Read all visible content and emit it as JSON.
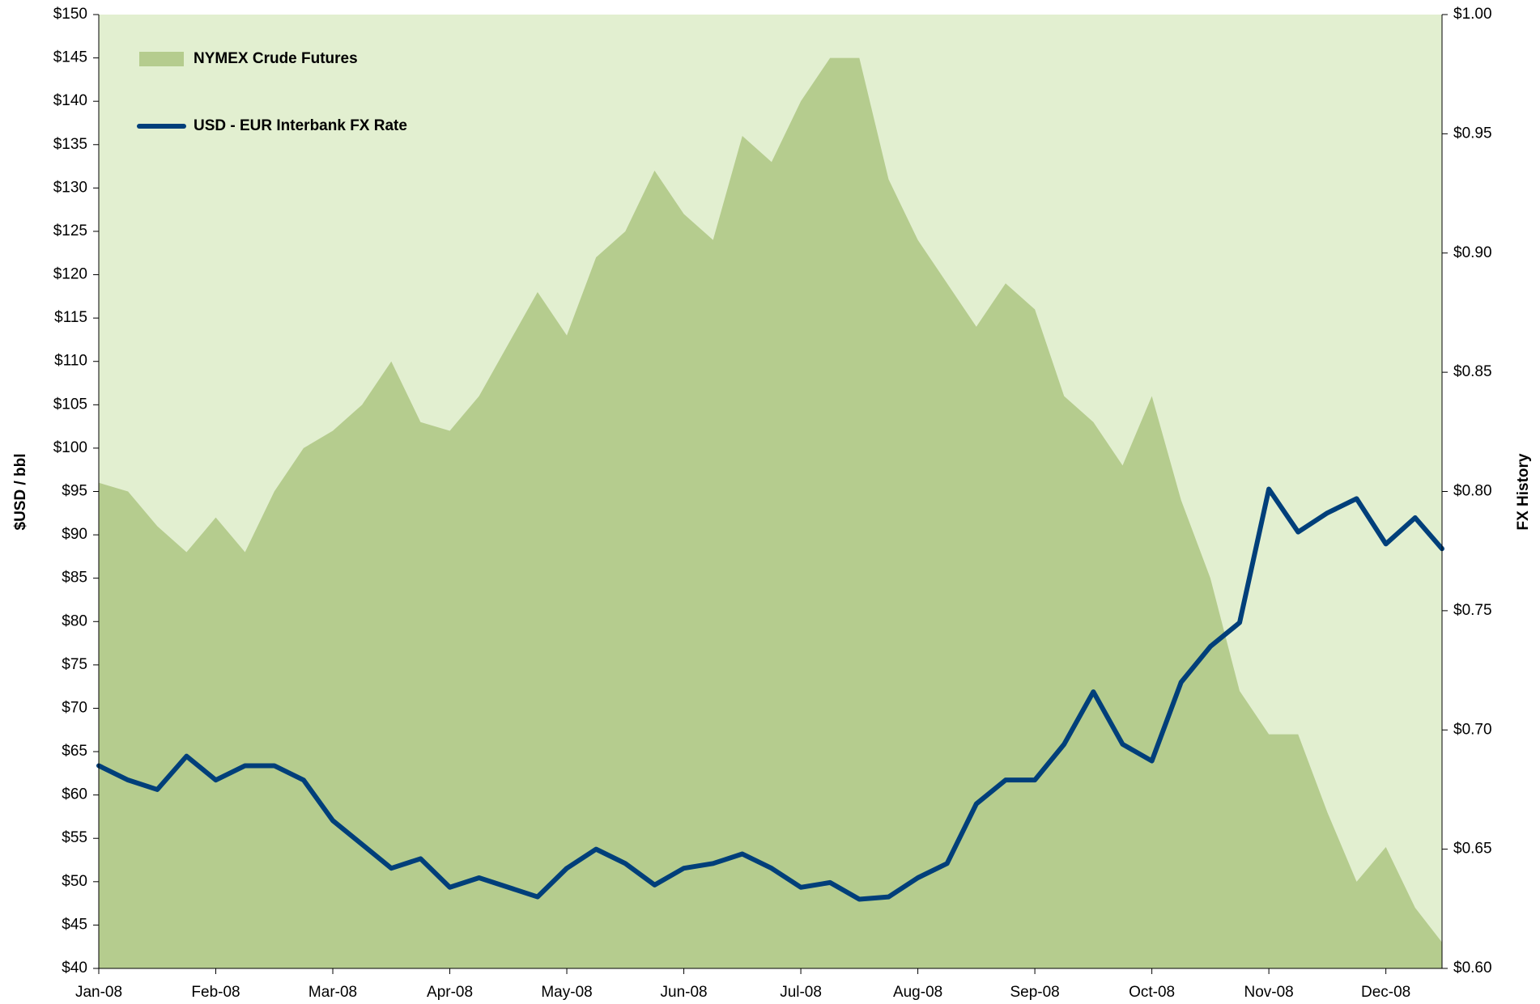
{
  "chart_data": {
    "type": "area-line",
    "y_label": "$USD / bbl",
    "y2_label": "FX History",
    "legend": "upper left",
    "plot_background": "#e2efd0",
    "x": [
      0,
      0.25,
      0.5,
      0.75,
      1,
      1.25,
      1.5,
      1.75,
      2,
      2.25,
      2.5,
      2.75,
      3,
      3.25,
      3.5,
      3.75,
      4,
      4.25,
      4.5,
      4.75,
      5,
      5.25,
      5.5,
      5.75,
      6,
      6.25,
      6.5,
      6.75,
      7,
      7.25,
      7.5,
      7.75,
      8,
      8.25,
      8.5,
      8.75,
      9,
      9.25,
      9.5,
      9.75,
      10,
      10.25,
      10.5,
      10.75,
      11,
      11.25,
      11.48
    ],
    "xlim": [
      0,
      11.48
    ],
    "xticks": [
      {
        "value": 0,
        "label": "Jan-08"
      },
      {
        "value": 1,
        "label": "Feb-08"
      },
      {
        "value": 2,
        "label": "Mar-08"
      },
      {
        "value": 3,
        "label": "Apr-08"
      },
      {
        "value": 4,
        "label": "May-08"
      },
      {
        "value": 5,
        "label": "Jun-08"
      },
      {
        "value": 6,
        "label": "Jul-08"
      },
      {
        "value": 7,
        "label": "Aug-08"
      },
      {
        "value": 8,
        "label": "Sep-08"
      },
      {
        "value": 9,
        "label": "Oct-08"
      },
      {
        "value": 10,
        "label": "Nov-08"
      },
      {
        "value": 11,
        "label": "Dec-08"
      }
    ],
    "ylim": [
      40,
      150
    ],
    "yticks": [
      {
        "value": 40,
        "label": "$40"
      },
      {
        "value": 45,
        "label": "$45"
      },
      {
        "value": 50,
        "label": "$50"
      },
      {
        "value": 55,
        "label": "$55"
      },
      {
        "value": 60,
        "label": "$60"
      },
      {
        "value": 65,
        "label": "$65"
      },
      {
        "value": 70,
        "label": "$70"
      },
      {
        "value": 75,
        "label": "$75"
      },
      {
        "value": 80,
        "label": "$80"
      },
      {
        "value": 85,
        "label": "$85"
      },
      {
        "value": 90,
        "label": "$90"
      },
      {
        "value": 95,
        "label": "$95"
      },
      {
        "value": 100,
        "label": "$100"
      },
      {
        "value": 105,
        "label": "$105"
      },
      {
        "value": 110,
        "label": "$110"
      },
      {
        "value": 115,
        "label": "$115"
      },
      {
        "value": 120,
        "label": "$120"
      },
      {
        "value": 125,
        "label": "$125"
      },
      {
        "value": 130,
        "label": "$130"
      },
      {
        "value": 135,
        "label": "$135"
      },
      {
        "value": 140,
        "label": "$140"
      },
      {
        "value": 145,
        "label": "$145"
      },
      {
        "value": 150,
        "label": "$150"
      }
    ],
    "y2lim": [
      0.6,
      1.0
    ],
    "y2ticks": [
      {
        "value": 0.6,
        "label": "$0.60"
      },
      {
        "value": 0.65,
        "label": "$0.65"
      },
      {
        "value": 0.7,
        "label": "$0.70"
      },
      {
        "value": 0.75,
        "label": "$0.75"
      },
      {
        "value": 0.8,
        "label": "$0.80"
      },
      {
        "value": 0.85,
        "label": "$0.85"
      },
      {
        "value": 0.9,
        "label": "$0.90"
      },
      {
        "value": 0.95,
        "label": "$0.95"
      },
      {
        "value": 1.0,
        "label": "$1.00"
      }
    ],
    "series": [
      {
        "name": "NYMEX Crude Futures",
        "kind": "area",
        "color": "#b5cc8e",
        "values": [
          96,
          95,
          91,
          88,
          92,
          88,
          95,
          100,
          102,
          105,
          110,
          103,
          102,
          106,
          112,
          118,
          113,
          122,
          125,
          132,
          127,
          124,
          136,
          133,
          140,
          145,
          145,
          131,
          124,
          119,
          114,
          119,
          116,
          106,
          103,
          98,
          106,
          94,
          85,
          72,
          67,
          67,
          58,
          50,
          54,
          47,
          43
        ]
      },
      {
        "name": "USD - EUR Interbank FX Rate",
        "kind": "line",
        "axis": "y2",
        "color": "#003f7a",
        "values": [
          0.685,
          0.679,
          0.675,
          0.689,
          0.679,
          0.685,
          0.685,
          0.679,
          0.662,
          0.652,
          0.642,
          0.646,
          0.634,
          0.638,
          0.634,
          0.63,
          0.642,
          0.65,
          0.644,
          0.635,
          0.642,
          0.644,
          0.648,
          0.642,
          0.634,
          0.636,
          0.629,
          0.63,
          0.638,
          0.644,
          0.669,
          0.679,
          0.679,
          0.694,
          0.716,
          0.694,
          0.687,
          0.72,
          0.735,
          0.745,
          0.801,
          0.783,
          0.791,
          0.797,
          0.778,
          0.789,
          0.776
        ]
      }
    ]
  }
}
